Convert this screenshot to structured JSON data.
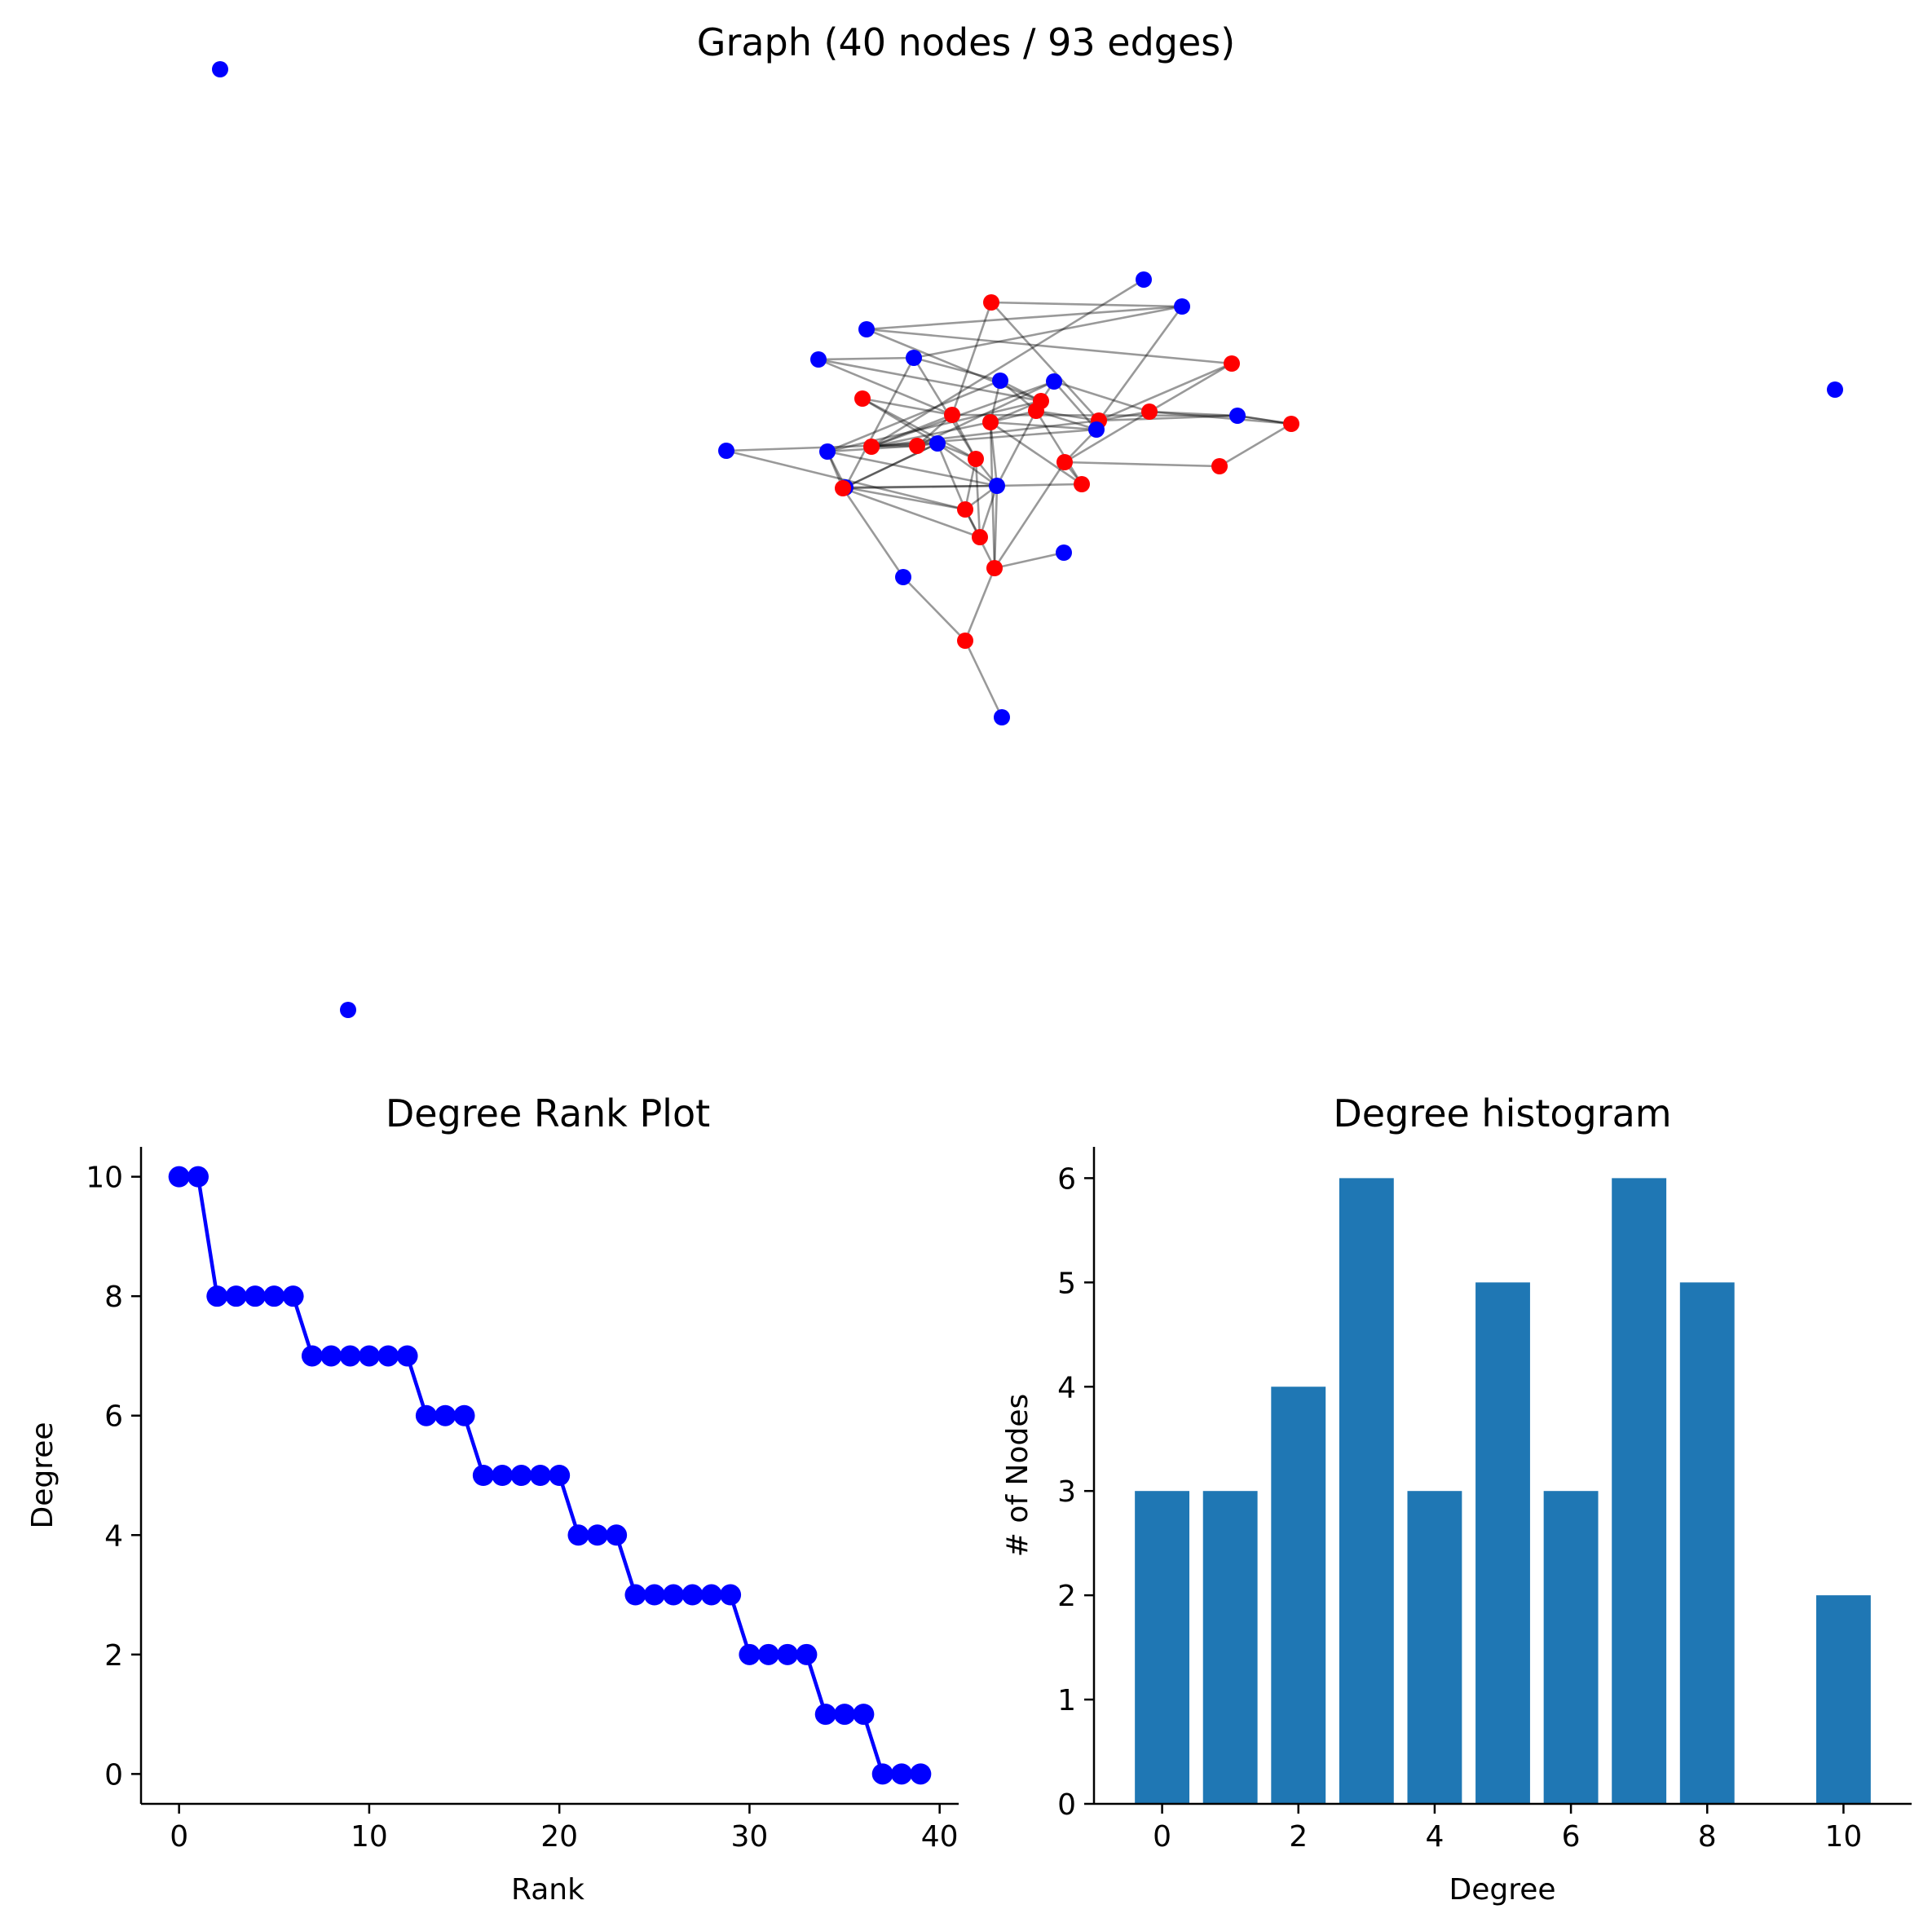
{
  "colors": {
    "hub_node": "#ff0000",
    "other_node": "#0000ff",
    "rank_line": "#0000ff",
    "hist_bar": "#1f77b4",
    "edge": "#000000"
  },
  "chart_data": [
    {
      "type": "network",
      "title": "Graph (40 nodes / 93 edges)",
      "node_count": 40,
      "edge_count": 93
    },
    {
      "type": "line",
      "title": "Degree Rank Plot",
      "xlabel": "Rank",
      "ylabel": "Degree",
      "xlim": [
        -2,
        41
      ],
      "ylim": [
        -0.5,
        10.5
      ],
      "xticks": [
        0,
        10,
        20,
        30,
        40
      ],
      "yticks": [
        0,
        2,
        4,
        6,
        8,
        10
      ],
      "x": [
        0,
        1,
        2,
        3,
        4,
        5,
        6,
        7,
        8,
        9,
        10,
        11,
        12,
        13,
        14,
        15,
        16,
        17,
        18,
        19,
        20,
        21,
        22,
        23,
        24,
        25,
        26,
        27,
        28,
        29,
        30,
        31,
        32,
        33,
        34,
        35,
        36,
        37,
        38,
        39
      ],
      "values": [
        10,
        10,
        8,
        8,
        8,
        8,
        8,
        7,
        7,
        7,
        7,
        7,
        7,
        6,
        6,
        6,
        5,
        5,
        5,
        5,
        5,
        4,
        4,
        4,
        3,
        3,
        3,
        3,
        3,
        3,
        2,
        2,
        2,
        2,
        1,
        1,
        1,
        0,
        0,
        0
      ],
      "marker": "o"
    },
    {
      "type": "bar",
      "title": "Degree histogram",
      "xlabel": "Degree",
      "ylabel": "# of Nodes",
      "categories": [
        0,
        1,
        2,
        3,
        4,
        5,
        6,
        7,
        8,
        10
      ],
      "values": [
        3,
        3,
        4,
        6,
        3,
        5,
        3,
        6,
        5,
        2
      ],
      "xlim": [
        -1,
        11
      ],
      "ylim": [
        0,
        6.3
      ],
      "xticks": [
        0,
        2,
        4,
        6,
        8,
        10
      ],
      "yticks": [
        0,
        1,
        2,
        3,
        4,
        5,
        6
      ]
    }
  ]
}
